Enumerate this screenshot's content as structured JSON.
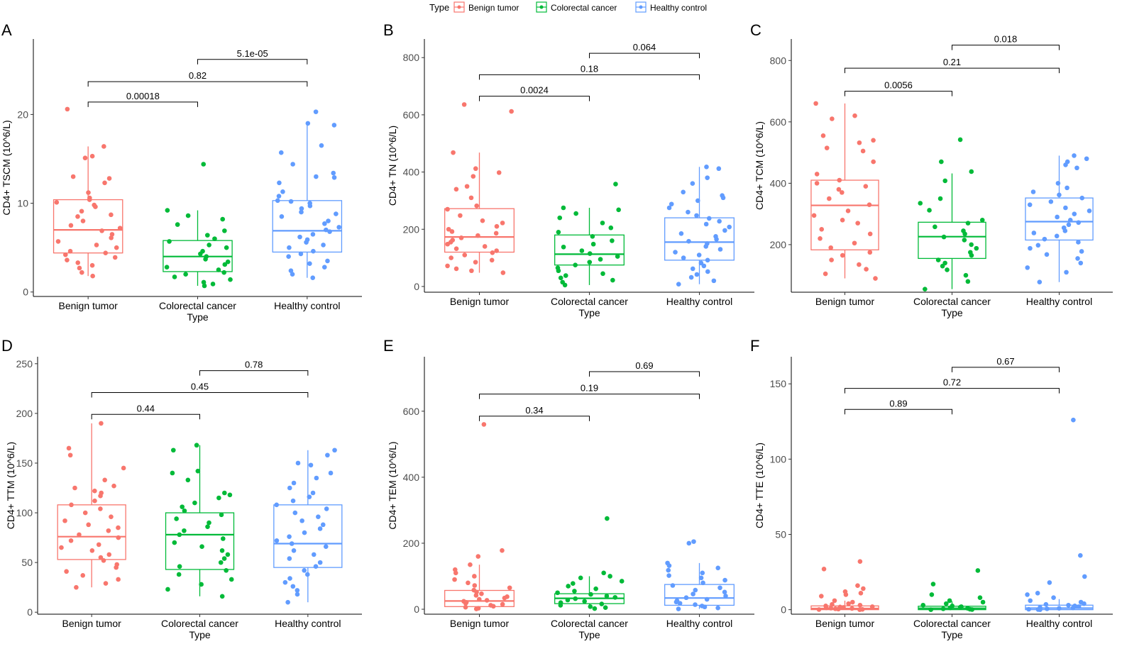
{
  "legend": {
    "title": "Type",
    "items": [
      {
        "label": "Benign tumor",
        "color": "#F8766D"
      },
      {
        "label": "Colorectal cancer",
        "color": "#00BA38"
      },
      {
        "label": "Healthy control",
        "color": "#619CFF"
      }
    ]
  },
  "chart_data": [
    {
      "panel": "A",
      "type": "box",
      "ylabel": "CD4+ TSCM (10^6/L)",
      "xlabel": "Type",
      "categories": [
        "Benign tumor",
        "Colorectal cancer",
        "Healthy control"
      ],
      "ylim": [
        -0.5,
        28.5
      ],
      "yticks": [
        0,
        10,
        20
      ],
      "boxes": [
        {
          "whisker_low": 1.8,
          "q1": 4.4,
          "median": 7.0,
          "q3": 10.4,
          "whisker_high": 16.4
        },
        {
          "whisker_low": 0.7,
          "q1": 2.3,
          "median": 4.0,
          "q3": 5.8,
          "whisker_high": 9.2
        },
        {
          "whisker_low": 1.6,
          "q1": 4.5,
          "median": 6.9,
          "q3": 10.3,
          "whisker_high": 18.8
        }
      ],
      "points": [
        [
          20.6,
          16.4,
          15.3,
          15.1,
          13.0,
          12.8,
          12.3,
          11.2,
          10.6,
          10.4,
          10.1,
          9.8,
          9.6,
          9.1,
          8.7,
          8.5,
          8.0,
          7.5,
          7.2,
          6.9,
          6.5,
          6.1,
          5.7,
          5.3,
          5.0,
          4.6,
          4.4,
          4.2,
          3.9,
          3.6,
          3.3,
          3.0,
          2.7,
          2.2,
          1.8
        ],
        [
          14.4,
          9.2,
          8.6,
          8.2,
          7.6,
          6.9,
          6.4,
          6.0,
          5.7,
          5.3,
          5.0,
          4.6,
          4.3,
          4.0,
          3.7,
          3.4,
          3.1,
          2.8,
          2.5,
          2.2,
          2.0,
          1.7,
          1.4,
          1.1,
          0.9,
          0.7
        ],
        [
          20.3,
          19.0,
          18.8,
          16.5,
          15.7,
          14.4,
          13.4,
          13.0,
          12.9,
          12.3,
          11.3,
          10.8,
          10.3,
          10.2,
          10.0,
          9.7,
          9.4,
          9.0,
          8.8,
          8.5,
          8.0,
          7.7,
          7.3,
          7.0,
          6.8,
          6.5,
          6.2,
          5.9,
          5.6,
          5.3,
          5.0,
          4.6,
          4.3,
          4.0,
          3.5,
          3.2,
          2.8,
          2.4,
          2.0,
          1.6
        ]
      ],
      "comparisons": [
        {
          "from": 0,
          "to": 1,
          "p": "0.00018",
          "y": 21.4
        },
        {
          "from": 0,
          "to": 2,
          "p": "0.82",
          "y": 23.7
        },
        {
          "from": 1,
          "to": 2,
          "p": "5.1e-05",
          "y": 26.2
        }
      ]
    },
    {
      "panel": "B",
      "type": "box",
      "ylabel": "CD4+ TN (10^6/L)",
      "xlabel": "Type",
      "categories": [
        "Benign tumor",
        "Colorectal cancer",
        "Healthy control"
      ],
      "ylim": [
        -20,
        865
      ],
      "yticks": [
        0,
        200,
        400,
        600,
        800
      ],
      "boxes": [
        {
          "whisker_low": 48,
          "q1": 120,
          "median": 173,
          "q3": 272,
          "whisker_high": 468
        },
        {
          "whisker_low": 5,
          "q1": 75,
          "median": 113,
          "q3": 180,
          "whisker_high": 275
        },
        {
          "whisker_low": 8,
          "q1": 92,
          "median": 155,
          "q3": 240,
          "whisker_high": 418
        }
      ],
      "points": [
        [
          636,
          612,
          468,
          412,
          398,
          385,
          350,
          340,
          310,
          282,
          270,
          248,
          230,
          222,
          210,
          200,
          192,
          186,
          178,
          170,
          162,
          155,
          148,
          140,
          132,
          125,
          118,
          110,
          100,
          92,
          85,
          72,
          62,
          55,
          48
        ],
        [
          358,
          275,
          268,
          255,
          240,
          222,
          205,
          190,
          175,
          160,
          148,
          138,
          125,
          115,
          105,
          95,
          85,
          75,
          65,
          55,
          45,
          38,
          30,
          22,
          15,
          5
        ],
        [
          418,
          412,
          380,
          360,
          330,
          318,
          310,
          300,
          288,
          275,
          260,
          248,
          238,
          228,
          218,
          208,
          196,
          185,
          175,
          165,
          158,
          150,
          140,
          130,
          120,
          110,
          100,
          92,
          82,
          72,
          62,
          52,
          42,
          32,
          20,
          8
        ]
      ],
      "comparisons": [
        {
          "from": 0,
          "to": 1,
          "p": "0.0024",
          "y": 665
        },
        {
          "from": 0,
          "to": 2,
          "p": "0.18",
          "y": 740
        },
        {
          "from": 1,
          "to": 2,
          "p": "0.064",
          "y": 815
        }
      ]
    },
    {
      "panel": "C",
      "type": "box",
      "ylabel": "CD4+ TCM (10^6/L)",
      "xlabel": "Type",
      "categories": [
        "Benign tumor",
        "Colorectal cancer",
        "Healthy control"
      ],
      "ylim": [
        45,
        870
      ],
      "yticks": [
        200,
        400,
        600,
        800
      ],
      "boxes": [
        {
          "whisker_low": 90,
          "q1": 183,
          "median": 328,
          "q3": 410,
          "whisker_high": 660
        },
        {
          "whisker_low": 55,
          "q1": 155,
          "median": 226,
          "q3": 273,
          "whisker_high": 432
        },
        {
          "whisker_low": 78,
          "q1": 215,
          "median": 275,
          "q3": 352,
          "whisker_high": 490
        }
      ],
      "points": [
        [
          660,
          620,
          610,
          555,
          540,
          532,
          515,
          505,
          470,
          430,
          410,
          400,
          390,
          380,
          370,
          350,
          330,
          310,
          295,
          280,
          270,
          250,
          235,
          220,
          205,
          190,
          175,
          165,
          150,
          135,
          120,
          105,
          90
        ],
        [
          542,
          470,
          438,
          408,
          350,
          335,
          312,
          280,
          270,
          258,
          245,
          235,
          225,
          215,
          200,
          188,
          175,
          165,
          150,
          140,
          130,
          118,
          100,
          80,
          55
        ],
        [
          490,
          480,
          470,
          460,
          450,
          400,
          385,
          372,
          362,
          352,
          340,
          330,
          320,
          310,
          300,
          290,
          280,
          272,
          265,
          255,
          245,
          238,
          228,
          218,
          208,
          198,
          188,
          178,
          168,
          155,
          140,
          125,
          110,
          78
        ]
      ],
      "comparisons": [
        {
          "from": 0,
          "to": 1,
          "p": "0.0056",
          "y": 700
        },
        {
          "from": 0,
          "to": 2,
          "p": "0.21",
          "y": 775
        },
        {
          "from": 1,
          "to": 2,
          "p": "0.018",
          "y": 850
        }
      ]
    },
    {
      "panel": "D",
      "type": "box",
      "ylabel": "CD4+ TTM (10^6/L)",
      "xlabel": "Type",
      "categories": [
        "Benign tumor",
        "Colorectal cancer",
        "Healthy control"
      ],
      "ylim": [
        -2,
        257
      ],
      "yticks": [
        0,
        50,
        100,
        150,
        200,
        250
      ],
      "boxes": [
        {
          "whisker_low": 25,
          "q1": 53,
          "median": 76,
          "q3": 108,
          "whisker_high": 190
        },
        {
          "whisker_low": 16,
          "q1": 43,
          "median": 78,
          "q3": 100,
          "whisker_high": 168
        },
        {
          "whisker_low": 10,
          "q1": 45,
          "median": 69,
          "q3": 108,
          "whisker_high": 163
        }
      ],
      "points": [
        [
          190,
          165,
          158,
          145,
          133,
          127,
          125,
          122,
          120,
          117,
          112,
          108,
          104,
          100,
          96,
          92,
          88,
          85,
          82,
          78,
          75,
          72,
          68,
          65,
          62,
          58,
          55,
          52,
          48,
          45,
          41,
          37,
          33,
          29,
          25
        ],
        [
          168,
          163,
          142,
          140,
          133,
          120,
          118,
          115,
          110,
          106,
          102,
          98,
          94,
          90,
          86,
          82,
          78,
          74,
          70,
          66,
          62,
          58,
          54,
          50,
          46,
          42,
          38,
          33,
          28,
          23,
          16
        ],
        [
          163,
          158,
          150,
          148,
          140,
          135,
          130,
          125,
          120,
          116,
          112,
          108,
          104,
          100,
          96,
          92,
          88,
          84,
          80,
          76,
          72,
          69,
          66,
          62,
          58,
          54,
          50,
          46,
          42,
          38,
          34,
          30,
          26,
          22,
          18,
          10
        ]
      ],
      "comparisons": [
        {
          "from": 0,
          "to": 1,
          "p": "0.44",
          "y": 199
        },
        {
          "from": 0,
          "to": 2,
          "p": "0.45",
          "y": 221
        },
        {
          "from": 1,
          "to": 2,
          "p": "0.78",
          "y": 243
        }
      ]
    },
    {
      "panel": "E",
      "type": "box",
      "ylabel": "CD4+ TEM (10^6/L)",
      "xlabel": "Type",
      "categories": [
        "Benign tumor",
        "Colorectal cancer",
        "Healthy control"
      ],
      "ylim": [
        -15,
        765
      ],
      "yticks": [
        0,
        200,
        400,
        600
      ],
      "boxes": [
        {
          "whisker_low": 0,
          "q1": 8,
          "median": 25,
          "q3": 57,
          "whisker_high": 135
        },
        {
          "whisker_low": 2,
          "q1": 17,
          "median": 33,
          "q3": 47,
          "whisker_high": 100
        },
        {
          "whisker_low": 1,
          "q1": 12,
          "median": 34,
          "q3": 75,
          "whisker_high": 140
        }
      ],
      "points": [
        [
          560,
          178,
          160,
          135,
          120,
          110,
          100,
          90,
          80,
          72,
          65,
          58,
          52,
          47,
          42,
          38,
          34,
          30,
          27,
          24,
          21,
          18,
          15,
          12,
          9,
          6,
          3,
          1
        ],
        [
          275,
          110,
          100,
          95,
          85,
          78,
          70,
          62,
          55,
          50,
          45,
          40,
          36,
          32,
          28,
          24,
          20,
          16,
          12,
          8,
          5,
          2
        ],
        [
          205,
          200,
          140,
          132,
          125,
          118,
          110,
          102,
          95,
          88,
          80,
          72,
          65,
          58,
          52,
          46,
          40,
          35,
          30,
          26,
          22,
          18,
          14,
          10,
          7,
          4,
          1
        ]
      ],
      "comparisons": [
        {
          "from": 0,
          "to": 1,
          "p": "0.34",
          "y": 585
        },
        {
          "from": 0,
          "to": 2,
          "p": "0.19",
          "y": 652
        },
        {
          "from": 1,
          "to": 2,
          "p": "0.69",
          "y": 720
        }
      ]
    },
    {
      "panel": "F",
      "type": "box",
      "ylabel": "CD4+ TTE (10^6/L)",
      "xlabel": "Type",
      "categories": [
        "Benign tumor",
        "Colorectal cancer",
        "Healthy control"
      ],
      "ylim": [
        -3,
        168
      ],
      "yticks": [
        0,
        50,
        100,
        150
      ],
      "boxes": [
        {
          "whisker_low": 0,
          "q1": 0,
          "median": 0.8,
          "q3": 2.5,
          "whisker_high": 6
        },
        {
          "whisker_low": 0,
          "q1": 0,
          "median": 0.9,
          "q3": 2.3,
          "whisker_high": 5.5
        },
        {
          "whisker_low": 0,
          "q1": 0,
          "median": 1.0,
          "q3": 3.0,
          "whisker_high": 7
        }
      ],
      "points": [
        [
          32,
          27,
          16,
          14,
          12,
          11,
          10,
          9,
          6,
          5,
          4,
          3.5,
          3,
          2.5,
          2,
          1.8,
          1.5,
          1.2,
          1,
          0.8,
          0.6,
          0.4,
          0.2,
          0.1,
          0
        ],
        [
          26,
          17,
          10,
          8,
          6,
          5,
          4,
          3,
          2.5,
          2,
          1.6,
          1.2,
          0.9,
          0.6,
          0.3,
          0.1,
          0
        ],
        [
          126,
          36,
          22,
          18,
          11,
          10,
          8,
          6,
          5,
          4,
          3.5,
          3,
          2.5,
          2,
          1.5,
          1.2,
          0.9,
          0.6,
          0.3,
          0.1,
          0
        ]
      ],
      "comparisons": [
        {
          "from": 0,
          "to": 1,
          "p": "0.89",
          "y": 133
        },
        {
          "from": 0,
          "to": 2,
          "p": "0.72",
          "y": 147
        },
        {
          "from": 1,
          "to": 2,
          "p": "0.67",
          "y": 161
        }
      ]
    }
  ]
}
